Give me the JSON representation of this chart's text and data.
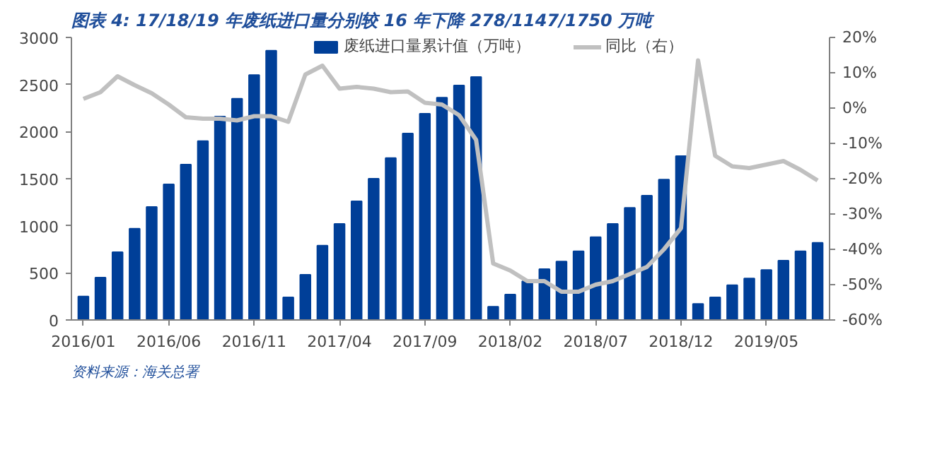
{
  "chart_data": {
    "type": "bar",
    "title": "图表 4:  17/18/19 年废纸进口量分别较 16 年下降 278/1147/1750 万吨",
    "categories": [
      "2016/01",
      null,
      null,
      null,
      null,
      "2016/06",
      null,
      null,
      null,
      null,
      "2016/11",
      null,
      null,
      null,
      null,
      "2017/04",
      null,
      null,
      null,
      null,
      "2017/09",
      null,
      null,
      null,
      null,
      "2018/02",
      null,
      null,
      null,
      null,
      "2018/07",
      null,
      null,
      null,
      null,
      "2018/12",
      null,
      null,
      null,
      null,
      "2019/05",
      null,
      null,
      null
    ],
    "series": [
      {
        "name": "废纸进口量累计值（万吨）",
        "color": "#003f98",
        "values": [
          250,
          450,
          720,
          970,
          1200,
          1440,
          1650,
          1900,
          2160,
          2350,
          2600,
          2860,
          240,
          480,
          790,
          1020,
          1260,
          1500,
          1720,
          1980,
          2190,
          2360,
          2490,
          2580,
          140,
          270,
          410,
          540,
          620,
          730,
          880,
          1020,
          1190,
          1320,
          1490,
          1740,
          170,
          240,
          370,
          440,
          530,
          630,
          730,
          820
        ]
      },
      {
        "name": "同比（右）",
        "type": "line",
        "axis": "y2",
        "color": "#c0c0c0",
        "values": [
          2.6,
          4.5,
          9,
          6.5,
          4.2,
          1,
          -2.6,
          -3,
          -3,
          -3.5,
          -2.3,
          -2.3,
          -3.9,
          9.5,
          12,
          5.5,
          6,
          5.5,
          4.5,
          4.7,
          1.5,
          1,
          -2,
          -9,
          -44,
          -46,
          -49,
          -49,
          -52,
          -52,
          -50,
          -49,
          -47,
          -45,
          -40,
          -34,
          13.5,
          -13.5,
          -16.5,
          -17,
          -16,
          -15,
          -17.5,
          -20.5
        ]
      }
    ],
    "ylim": [
      0,
      3000
    ],
    "yticks": [
      0,
      500,
      1000,
      1500,
      2000,
      2500,
      3000
    ],
    "y2lim": [
      -60,
      20
    ],
    "y2ticks": [
      {
        "value": -60,
        "label": "-60%"
      },
      {
        "value": -50,
        "label": "-50%"
      },
      {
        "value": -40,
        "label": "-40%"
      },
      {
        "value": -30,
        "label": "-30%"
      },
      {
        "value": -20,
        "label": "-20%"
      },
      {
        "value": -10,
        "label": "-10%"
      },
      {
        "value": 0,
        "label": "0%"
      },
      {
        "value": 10,
        "label": "10%"
      },
      {
        "value": 20,
        "label": "20%"
      }
    ],
    "legend": "top",
    "grid": false,
    "annotations": [
      "资料来源：海关总署"
    ]
  }
}
